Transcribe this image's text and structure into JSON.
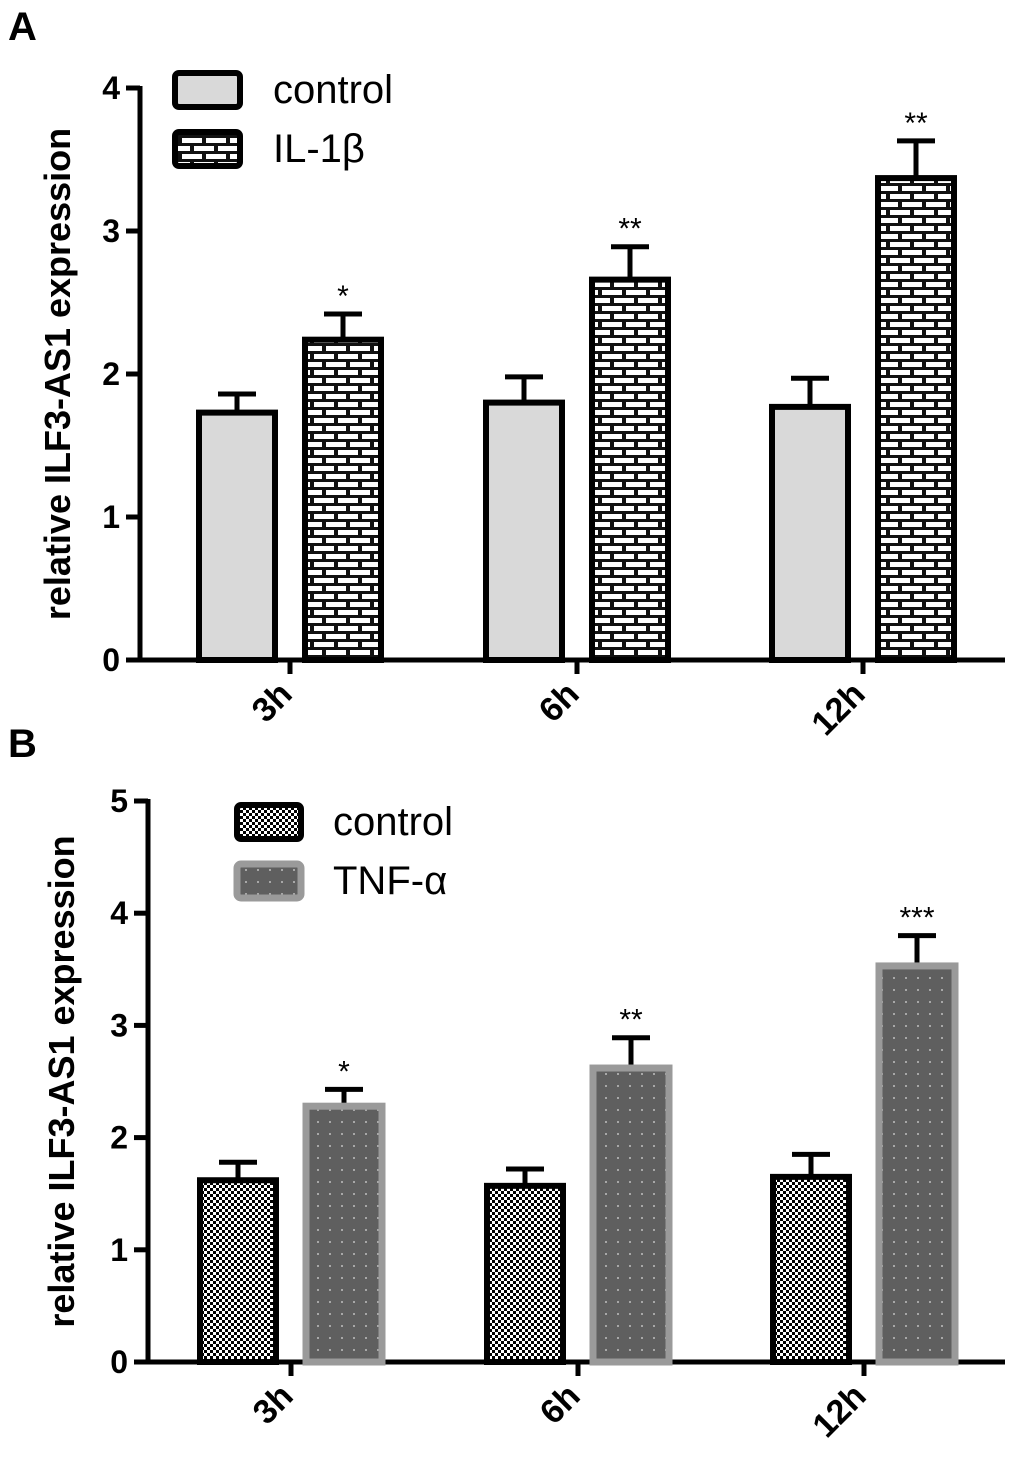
{
  "chart_data": [
    {
      "type": "bar",
      "panel_label": "A",
      "ylabel": "relative ILF3-AS1 expression",
      "xlabel": "",
      "ylim": [
        0,
        4
      ],
      "yticks": [
        "0",
        "1",
        "2",
        "3",
        "4"
      ],
      "categories": [
        "3h",
        "6h",
        "12h"
      ],
      "legend_position": "top-left",
      "series": [
        {
          "name": "control",
          "values": [
            1.73,
            1.8,
            1.77
          ],
          "errors": [
            0.13,
            0.18,
            0.2
          ],
          "pattern": "solid-light-gray"
        },
        {
          "name": "IL-1β",
          "values": [
            2.24,
            2.66,
            3.37
          ],
          "errors": [
            0.18,
            0.23,
            0.26
          ],
          "pattern": "brick"
        }
      ],
      "significance": [
        "*",
        "**",
        "**"
      ]
    },
    {
      "type": "bar",
      "panel_label": "B",
      "ylabel": "relative ILF3-AS1 expression",
      "xlabel": "",
      "ylim": [
        0,
        5
      ],
      "yticks": [
        "0",
        "1",
        "2",
        "3",
        "4",
        "5"
      ],
      "categories": [
        "3h",
        "6h",
        "12h"
      ],
      "legend_position": "top-left",
      "series": [
        {
          "name": "control",
          "values": [
            1.62,
            1.57,
            1.65
          ],
          "errors": [
            0.16,
            0.15,
            0.2
          ],
          "pattern": "checker"
        },
        {
          "name": "TNF-α",
          "values": [
            2.28,
            2.62,
            3.53
          ],
          "errors": [
            0.15,
            0.27,
            0.27
          ],
          "pattern": "dark-gray-dots"
        }
      ],
      "significance": [
        "*",
        "**",
        "***"
      ]
    }
  ]
}
